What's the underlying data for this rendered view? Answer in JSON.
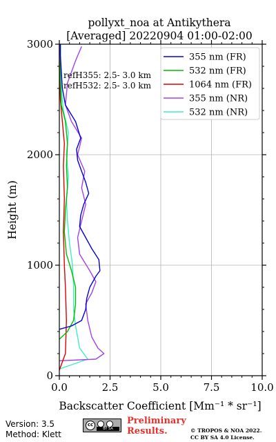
{
  "chart_data": {
    "type": "line",
    "title": "pollyxt_noa at Antikythera",
    "subtitle": "[Averaged] 20220904 01:00-02:00",
    "xlabel": "Backscatter Coefficient [Mm⁻¹ * sr⁻¹]",
    "ylabel": "Height (m)",
    "xlim": [
      0,
      10
    ],
    "ylim": [
      0,
      3000
    ],
    "x_ticks": [
      "0.0",
      "2.5",
      "5.0",
      "7.5",
      "10.0"
    ],
    "y_ticks": [
      "0",
      "1000",
      "2000",
      "3000"
    ],
    "grid": true,
    "legend_position": "top-right",
    "annotations": [
      "refH355:  2.5- 3.0 km",
      "refH532:  2.5- 3.0 km"
    ],
    "series": [
      {
        "name": "355 nm (FR)",
        "color": "#0000dd",
        "points": [
          [
            0,
            420
          ],
          [
            0.6,
            450
          ],
          [
            1.1,
            500
          ],
          [
            1.3,
            600
          ],
          [
            1.35,
            700
          ],
          [
            1.5,
            800
          ],
          [
            1.8,
            900
          ],
          [
            2.0,
            950
          ],
          [
            1.95,
            1050
          ],
          [
            1.6,
            1150
          ],
          [
            1.3,
            1250
          ],
          [
            1.0,
            1350
          ],
          [
            1.05,
            1450
          ],
          [
            1.2,
            1550
          ],
          [
            1.45,
            1650
          ],
          [
            1.3,
            1750
          ],
          [
            1.1,
            1850
          ],
          [
            0.9,
            1950
          ],
          [
            0.85,
            2050
          ],
          [
            1.05,
            2150
          ],
          [
            0.8,
            2300
          ],
          [
            0.3,
            2450
          ],
          [
            0.15,
            2600
          ],
          [
            0.1,
            2750
          ],
          [
            0.05,
            2900
          ],
          [
            0.05,
            3000
          ]
        ]
      },
      {
        "name": "532 nm (FR)",
        "color": "#00bb00",
        "points": [
          [
            0,
            330
          ],
          [
            0.4,
            400
          ],
          [
            0.7,
            500
          ],
          [
            0.8,
            650
          ],
          [
            0.8,
            800
          ],
          [
            0.6,
            950
          ],
          [
            0.35,
            1100
          ],
          [
            0.25,
            1300
          ],
          [
            0.3,
            1500
          ],
          [
            0.4,
            1700
          ],
          [
            0.35,
            1900
          ],
          [
            0.4,
            2100
          ],
          [
            0.3,
            2300
          ],
          [
            0.1,
            2450
          ],
          [
            0.05,
            2700
          ],
          [
            0.05,
            3000
          ]
        ]
      },
      {
        "name": "1064 nm (FR)",
        "color": "#dd0000",
        "points": [
          [
            0,
            50
          ],
          [
            0.3,
            200
          ],
          [
            0.35,
            500
          ],
          [
            0.3,
            800
          ],
          [
            0.25,
            1000
          ],
          [
            0.2,
            1300
          ],
          [
            0.25,
            1600
          ],
          [
            0.2,
            1900
          ],
          [
            0.25,
            2100
          ],
          [
            0.15,
            2300
          ],
          [
            0.05,
            2500
          ],
          [
            0,
            2800
          ],
          [
            0,
            3000
          ]
        ]
      },
      {
        "name": "355 nm (NR)",
        "color": "#a040f0",
        "points": [
          [
            0,
            135
          ],
          [
            1.8,
            150
          ],
          [
            2.2,
            200
          ],
          [
            1.9,
            250
          ],
          [
            1.6,
            350
          ],
          [
            1.4,
            500
          ],
          [
            1.3,
            650
          ],
          [
            1.6,
            750
          ],
          [
            1.8,
            850
          ],
          [
            1.5,
            950
          ],
          [
            1.0,
            1100
          ],
          [
            0.9,
            1250
          ],
          [
            1.1,
            1400
          ],
          [
            1.3,
            1550
          ],
          [
            1.1,
            1700
          ],
          [
            1.25,
            1850
          ],
          [
            0.9,
            2000
          ],
          [
            1.1,
            2150
          ],
          [
            0.6,
            2300
          ],
          [
            0.3,
            2450
          ],
          [
            0.4,
            2650
          ],
          [
            0.8,
            2850
          ],
          [
            1.1,
            2980
          ]
        ]
      },
      {
        "name": "532 nm (NR)",
        "color": "#40eec0",
        "points": [
          [
            0,
            60
          ],
          [
            1.4,
            150
          ],
          [
            1.0,
            250
          ],
          [
            0.9,
            350
          ],
          [
            0.8,
            450
          ],
          [
            0.7,
            600
          ],
          [
            0.7,
            800
          ],
          [
            0.65,
            1000
          ],
          [
            0.5,
            1200
          ],
          [
            0.4,
            1400
          ],
          [
            0.35,
            1600
          ],
          [
            0.45,
            1800
          ],
          [
            0.35,
            2000
          ],
          [
            0.45,
            2200
          ],
          [
            0.2,
            2400
          ],
          [
            0.1,
            2600
          ],
          [
            0.05,
            2800
          ],
          [
            0.05,
            3000
          ]
        ]
      }
    ]
  },
  "footer": {
    "version": "Version: 3.5",
    "method": "Method: Klett",
    "cc_icon": "cc-by-sa-license-icon",
    "cc_bar": "BY SA",
    "preliminary_line1": "Preliminary",
    "preliminary_line2": "Results.",
    "copyright_line1": "© TROPOS & NOA 2022.",
    "copyright_line2": "CC BY SA 4.0 License."
  }
}
